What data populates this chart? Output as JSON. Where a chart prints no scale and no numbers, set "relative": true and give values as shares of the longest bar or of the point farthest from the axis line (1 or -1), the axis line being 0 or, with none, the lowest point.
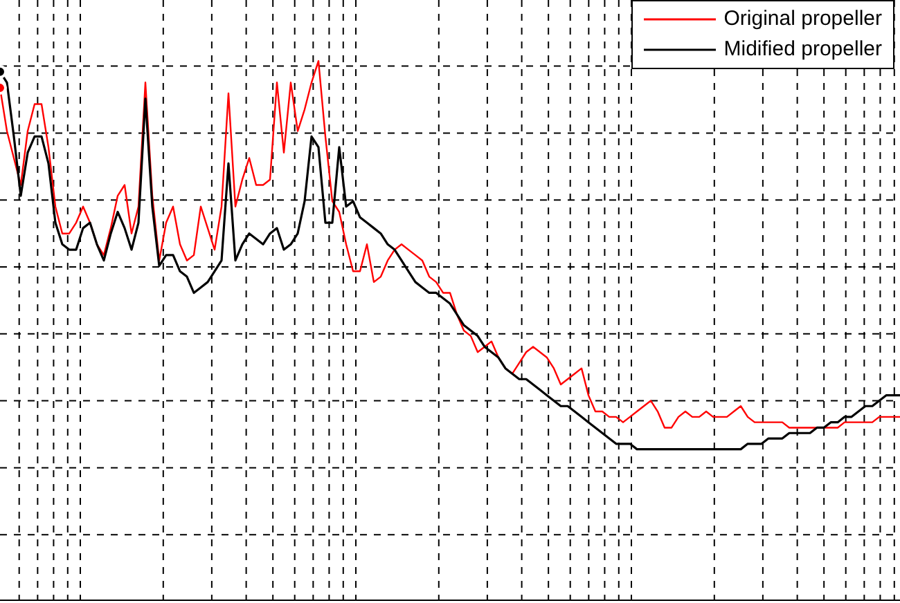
{
  "chart_data": {
    "type": "line",
    "relative": true,
    "grid": true,
    "legend": "top right",
    "marker": "none",
    "line_style": "solid",
    "categories": [
      null,
      null,
      null,
      null,
      null,
      null,
      null,
      null,
      null,
      null,
      null,
      null,
      null,
      null,
      null,
      null,
      null,
      null,
      null,
      null,
      null,
      null,
      null,
      null,
      null,
      null,
      null,
      null,
      null,
      null,
      null,
      null,
      null,
      null,
      null,
      null,
      null,
      null,
      null,
      null,
      null,
      null,
      null,
      null,
      null,
      null,
      null,
      null,
      null,
      null,
      null,
      null,
      null,
      null,
      null,
      null,
      null,
      null,
      null,
      null,
      null,
      null,
      null,
      null,
      null,
      null,
      null,
      null,
      null,
      null,
      null,
      null,
      null,
      null,
      null,
      null,
      null,
      null,
      null,
      null,
      null,
      null,
      null,
      null,
      null,
      null,
      null,
      null,
      null,
      null,
      null,
      null,
      null,
      null,
      null,
      null,
      null,
      null,
      null,
      null,
      null,
      null,
      null,
      null,
      null,
      null,
      null,
      null,
      null,
      null,
      null,
      null,
      null,
      null,
      null,
      null,
      null,
      null,
      null,
      null,
      null,
      null,
      null,
      null,
      null,
      null,
      null,
      null,
      null,
      null,
      null
    ],
    "series": [
      {
        "name": "Original propeller",
        "color": "#ff0000",
        "values": [
          0.95,
          0.87,
          0.82,
          0.77,
          0.87,
          0.92,
          0.92,
          0.84,
          0.73,
          0.68,
          0.68,
          0.7,
          0.73,
          0.7,
          0.66,
          0.64,
          0.69,
          0.75,
          0.77,
          0.68,
          0.73,
          0.96,
          0.75,
          0.63,
          0.7,
          0.73,
          0.66,
          0.63,
          0.64,
          0.73,
          0.69,
          0.65,
          0.73,
          0.94,
          0.73,
          0.78,
          0.82,
          0.77,
          0.77,
          0.78,
          0.96,
          0.83,
          0.96,
          0.87,
          0.91,
          0.96,
          1.0,
          0.86,
          0.74,
          0.72,
          0.66,
          0.61,
          0.61,
          0.66,
          0.59,
          0.6,
          0.63,
          0.65,
          0.66,
          0.65,
          0.64,
          0.63,
          0.6,
          0.59,
          0.57,
          0.57,
          0.53,
          0.5,
          0.49,
          0.46,
          0.47,
          0.48,
          0.45,
          0.43,
          0.42,
          0.44,
          0.46,
          0.47,
          0.46,
          0.45,
          0.43,
          0.4,
          0.41,
          0.42,
          0.43,
          0.38,
          0.35,
          0.35,
          0.34,
          0.34,
          0.33,
          0.34,
          0.35,
          0.36,
          0.37,
          0.35,
          0.32,
          0.32,
          0.34,
          0.35,
          0.34,
          0.34,
          0.35,
          0.34,
          0.34,
          0.34,
          0.35,
          0.36,
          0.34,
          0.33,
          0.33,
          0.33,
          0.33,
          0.33,
          0.32,
          0.32,
          0.32,
          0.32,
          0.32,
          0.32,
          0.32,
          0.32,
          0.33,
          0.33,
          0.33,
          0.33,
          0.33,
          0.34,
          0.34,
          0.34,
          0.34
        ]
      },
      {
        "name": "Midified propeller",
        "color": "#000000",
        "values": [
          0.98,
          0.96,
          0.86,
          0.75,
          0.83,
          0.86,
          0.86,
          0.81,
          0.7,
          0.66,
          0.65,
          0.65,
          0.69,
          0.7,
          0.66,
          0.63,
          0.68,
          0.72,
          0.69,
          0.65,
          0.7,
          0.93,
          0.73,
          0.62,
          0.64,
          0.64,
          0.61,
          0.6,
          0.57,
          0.58,
          0.59,
          0.61,
          0.63,
          0.81,
          0.63,
          0.66,
          0.68,
          0.67,
          0.66,
          0.68,
          0.69,
          0.65,
          0.66,
          0.68,
          0.74,
          0.86,
          0.84,
          0.7,
          0.7,
          0.84,
          0.73,
          0.74,
          0.71,
          0.7,
          0.69,
          0.68,
          0.66,
          0.65,
          0.63,
          0.61,
          0.59,
          0.58,
          0.57,
          0.57,
          0.56,
          0.55,
          0.53,
          0.51,
          0.5,
          0.49,
          0.47,
          0.46,
          0.45,
          0.43,
          0.42,
          0.41,
          0.41,
          0.4,
          0.39,
          0.38,
          0.37,
          0.36,
          0.36,
          0.35,
          0.34,
          0.33,
          0.32,
          0.31,
          0.3,
          0.29,
          0.29,
          0.29,
          0.28,
          0.28,
          0.28,
          0.28,
          0.28,
          0.28,
          0.28,
          0.28,
          0.28,
          0.28,
          0.28,
          0.28,
          0.28,
          0.28,
          0.28,
          0.28,
          0.29,
          0.29,
          0.29,
          0.3,
          0.3,
          0.3,
          0.31,
          0.31,
          0.31,
          0.31,
          0.32,
          0.32,
          0.33,
          0.33,
          0.34,
          0.34,
          0.35,
          0.36,
          0.36,
          0.37,
          0.38,
          0.38,
          0.38
        ]
      }
    ]
  }
}
